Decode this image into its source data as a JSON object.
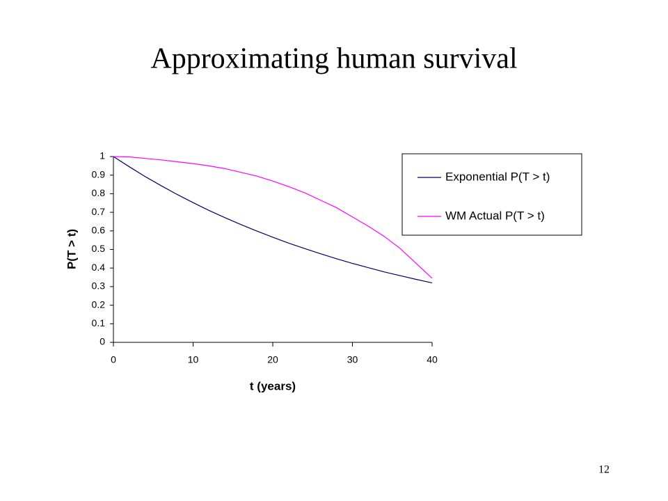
{
  "chart_data": {
    "type": "line",
    "title": "Approximating human survival",
    "x_label": "t (years)",
    "y_label": "P(T > t)",
    "x": [
      0,
      2,
      4,
      6,
      8,
      10,
      12,
      14,
      16,
      18,
      20,
      22,
      24,
      26,
      28,
      30,
      32,
      34,
      36,
      38,
      40
    ],
    "series": [
      {
        "name": "Exponential P(T > t)",
        "color": "#000066",
        "values": [
          1,
          0.945,
          0.892,
          0.843,
          0.796,
          0.752,
          0.71,
          0.671,
          0.634,
          0.599,
          0.566,
          0.534,
          0.505,
          0.477,
          0.45,
          0.425,
          0.402,
          0.379,
          0.359,
          0.339,
          0.32
        ]
      },
      {
        "name": "WM Actual P(T > t)",
        "color": "#ff00ff",
        "values": [
          1,
          0.998,
          0.99,
          0.982,
          0.972,
          0.962,
          0.95,
          0.935,
          0.915,
          0.895,
          0.868,
          0.838,
          0.805,
          0.765,
          0.725,
          0.675,
          0.625,
          0.57,
          0.505,
          0.425,
          0.345
        ]
      }
    ],
    "xlim": [
      0,
      40
    ],
    "xticks": [
      0,
      10,
      20,
      30,
      40
    ],
    "ylim": [
      0,
      1
    ],
    "yticks": [
      0,
      0.1,
      0.2,
      0.3,
      0.4,
      0.5,
      0.6,
      0.7,
      0.8,
      0.9,
      1
    ],
    "grid": false,
    "legend": "upper-right"
  },
  "slide": {
    "page_number": "12"
  }
}
